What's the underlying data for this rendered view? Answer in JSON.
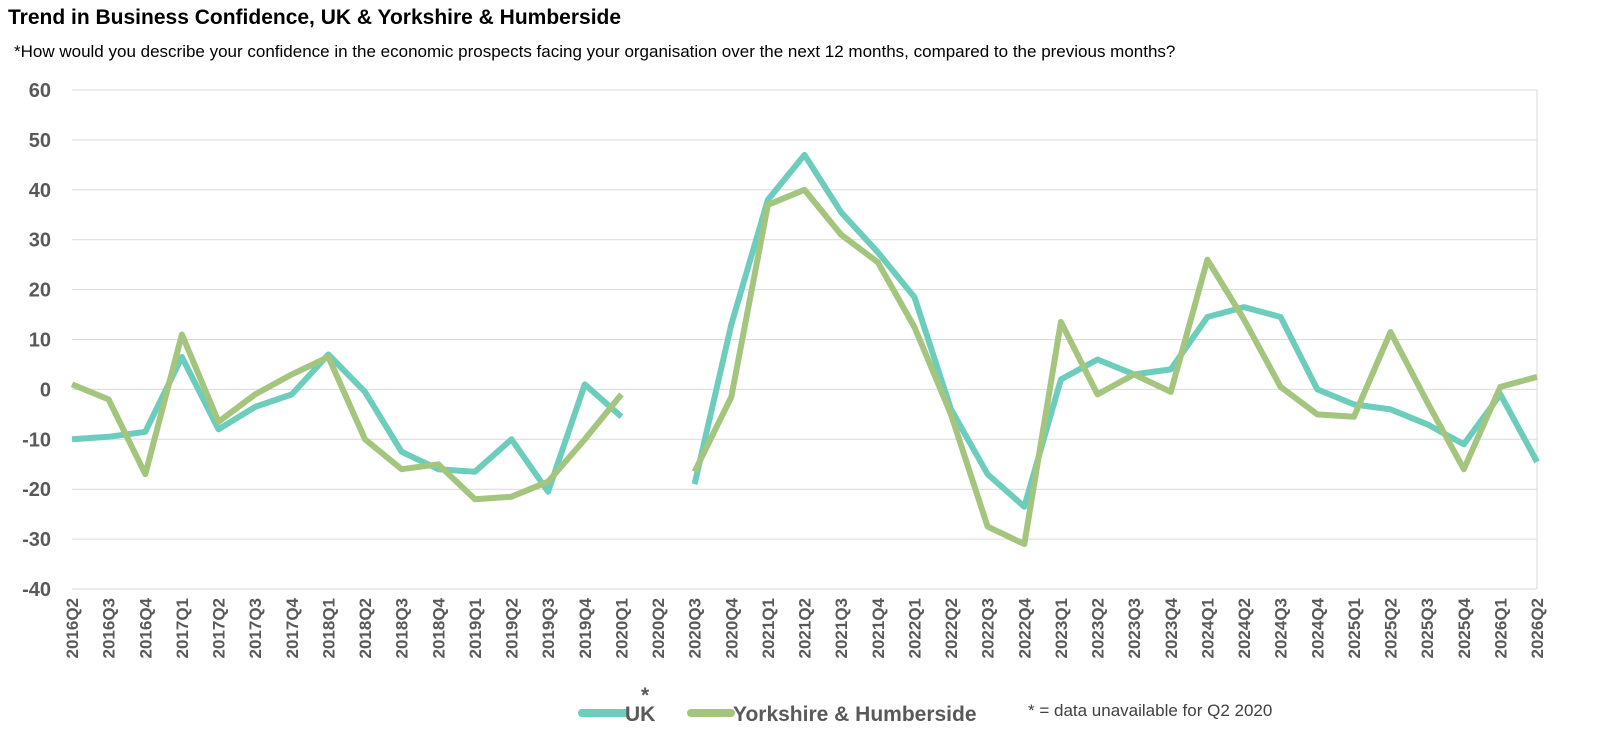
{
  "header": {
    "title": "Trend in Business Confidence, UK & Yorkshire & Humberside",
    "subtitle": "*How would you describe your confidence in the economic prospects facing your organisation over the next 12 months, compared to the previous months?"
  },
  "legend": {
    "items": [
      {
        "label": "UK",
        "color": "#6ccdbd"
      },
      {
        "label": "Yorkshire & Humberside",
        "color": "#a4c57d"
      }
    ],
    "star": "*",
    "note": "* = data unavailable for Q2 2020"
  },
  "chart_data": {
    "type": "line",
    "title": "Trend in Business Confidence, UK & Yorkshire & Humberside",
    "xlabel": "",
    "ylabel": "",
    "ylim": [
      -40,
      60
    ],
    "yticks": [
      60,
      50,
      40,
      30,
      20,
      10,
      0,
      -10,
      -20,
      -30,
      -40
    ],
    "grid": true,
    "legend_position": "bottom",
    "categories": [
      "2016Q2",
      "2016Q3",
      "2016Q4",
      "2017Q1",
      "2017Q2",
      "2017Q3",
      "2017Q4",
      "2018Q1",
      "2018Q2",
      "2018Q3",
      "2018Q4",
      "2019Q1",
      "2019Q2",
      "2019Q3",
      "2019Q4",
      "2020Q1",
      "2020Q2",
      "2020Q3",
      "2020Q4",
      "2021Q1",
      "2021Q2",
      "2021Q3",
      "2021Q4",
      "2022Q1",
      "2022Q2",
      "2022Q3",
      "2022Q4",
      "2023Q1",
      "2023Q2",
      "2023Q3",
      "2023Q4",
      "2024Q1",
      "2024Q2",
      "2024Q3",
      "2024Q4",
      "2025Q1",
      "2025Q2",
      "2025Q3",
      "2025Q4",
      "2026Q1",
      "2026Q2"
    ],
    "series": [
      {
        "name": "UK",
        "color": "#6ccdbd",
        "values": [
          -10,
          -9.5,
          -8.5,
          6.5,
          -8,
          -3.5,
          -1,
          7,
          -0.5,
          -12.5,
          -16,
          -16.5,
          -10,
          -20.5,
          1,
          -5.5,
          null,
          -19,
          13,
          38,
          47,
          35.5,
          27.5,
          18.5,
          -4,
          -17,
          -23.5,
          2,
          6,
          3,
          4,
          14.5,
          16.5,
          14.5,
          0,
          -3,
          -4,
          -7,
          -11,
          -1,
          -14.5
        ]
      },
      {
        "name": "Yorkshire & Humberside",
        "color": "#a4c57d",
        "values": [
          1,
          -2,
          -17,
          11,
          -6.5,
          -1,
          3,
          6.5,
          -10,
          -16,
          -15,
          -22,
          -21.5,
          -18.5,
          -10,
          -1,
          null,
          -16.5,
          -1.5,
          37,
          40,
          31,
          25.5,
          12.5,
          -5,
          -27.5,
          -31,
          13.5,
          -1,
          3,
          -0.5,
          26,
          14,
          0.5,
          -5,
          -5.5,
          11.5,
          -2.5,
          -16,
          0.5,
          2.5
        ]
      }
    ]
  }
}
